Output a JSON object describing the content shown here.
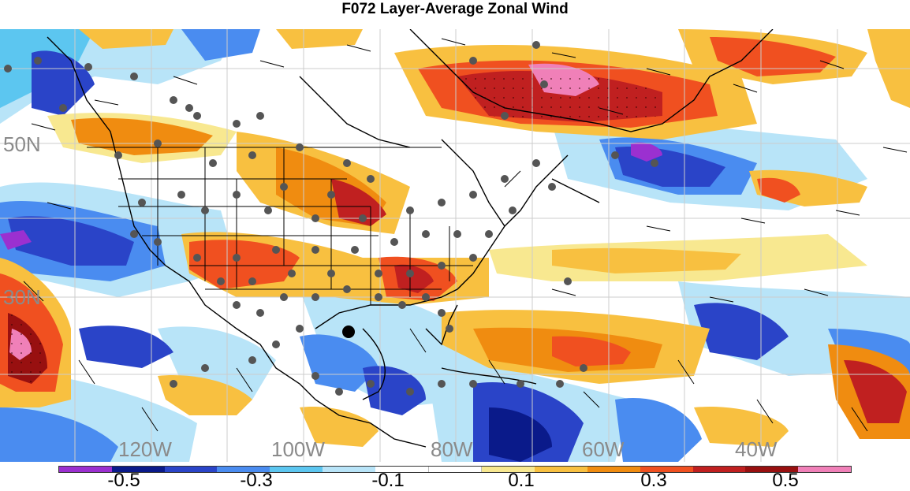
{
  "title": "F072 Layer-Average Zonal Wind",
  "lat_labels": [
    "50N",
    "30N"
  ],
  "lon_labels": [
    "120W",
    "100W",
    "80W",
    "60W",
    "40W"
  ],
  "colorbar": {
    "colors": [
      "#9b30d0",
      "#0a1a8a",
      "#2a44c8",
      "#4a8cf0",
      "#5cc6f0",
      "#b8e4f8",
      "#ffffff",
      "#ffffff",
      "#f8e890",
      "#f8c040",
      "#f08c10",
      "#f05020",
      "#c02020",
      "#981010",
      "#f080b8"
    ],
    "labels": [
      "-0.5",
      "-0.3",
      "-0.1",
      "0.1",
      "0.3",
      "0.5"
    ]
  },
  "colors": {
    "state_lines": "#000000",
    "stations": "#555555",
    "marker": "#000000"
  }
}
